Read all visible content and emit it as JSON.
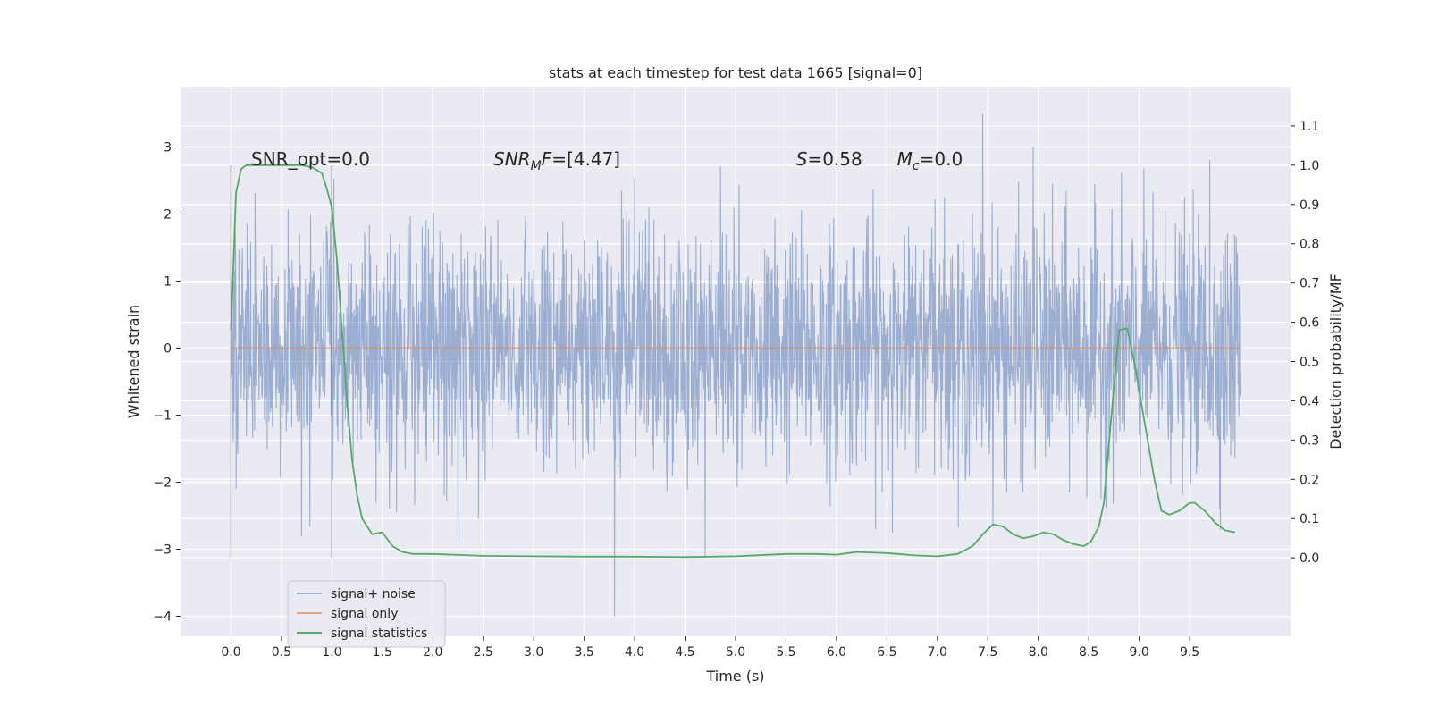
{
  "chart_data": {
    "type": "line",
    "title": "stats at each timestep for test data 1665 [signal=0]",
    "xlabel": "Time (s)",
    "ylabel": "Whitened strain",
    "y2label": "Detection probability/MF",
    "xlim": [
      -0.5,
      10.5
    ],
    "ylim": [
      -4.3,
      3.9
    ],
    "y2lim": [
      -0.2,
      1.2
    ],
    "x_ticks": [
      0.0,
      0.5,
      1.0,
      1.5,
      2.0,
      2.5,
      3.0,
      3.5,
      4.0,
      4.5,
      5.0,
      5.5,
      6.0,
      6.5,
      7.0,
      7.5,
      8.0,
      8.5,
      9.0,
      9.5
    ],
    "x_tick_labels": [
      "0.0",
      "0.5",
      "1.0",
      "1.5",
      "2.0",
      "2.5",
      "3.0",
      "3.5",
      "4.0",
      "4.5",
      "5.0",
      "5.5",
      "6.0",
      "6.5",
      "7.0",
      "7.5",
      "8.0",
      "8.5",
      "9.0",
      "9.5"
    ],
    "y_ticks": [
      3,
      2,
      1,
      0,
      -1,
      -2,
      -3,
      -4
    ],
    "y_tick_labels": [
      "3",
      "2",
      "1",
      "0",
      "−1",
      "−2",
      "−3",
      "−4"
    ],
    "y2_ticks": [
      1.1,
      1.0,
      0.9,
      0.8,
      0.7,
      0.6,
      0.5,
      0.4,
      0.3,
      0.2,
      0.1,
      0.0
    ],
    "y2_tick_labels": [
      "1.1",
      "1.0",
      "0.9",
      "0.8",
      "0.7",
      "0.6",
      "0.5",
      "0.4",
      "0.3",
      "0.2",
      "0.1",
      "0.0"
    ],
    "grid": true,
    "legend_position": "lower-left",
    "annotations": [
      {
        "text": "SNR_opt=0.0",
        "x": 0.2,
        "y": 1.0,
        "axis": "right"
      },
      {
        "html": "<tspan font-style='italic'>SNR</tspan><tspan font-style='italic' font-size='14' dy='5'>M</tspan><tspan font-style='italic' dy='-5'>F</tspan>=[4.47]",
        "text": "SNR_MF=[4.47]",
        "x": 2.6,
        "y": 1.0,
        "axis": "right"
      },
      {
        "text": "S=0.58",
        "x": 5.6,
        "y": 1.0,
        "axis": "right"
      },
      {
        "text": "M_c=0.0",
        "x": 6.6,
        "y": 1.0,
        "axis": "right"
      }
    ],
    "vlines": [
      {
        "x": 0.0,
        "ymin": 0.0,
        "ymax": 1.0
      },
      {
        "x": 1.0,
        "ymin": 0.0,
        "ymax": 1.0
      }
    ],
    "series": [
      {
        "name": "signal+ noise",
        "color": "#4c72b0",
        "opacity": 0.5,
        "axis": "left",
        "style": "noise",
        "x_range": [
          0.0,
          10.0
        ],
        "mean": 0.0,
        "std": 0.9,
        "sample_rate": 256,
        "spikes": [
          {
            "x": 7.45,
            "y": 3.5
          },
          {
            "x": 7.95,
            "y": 3.0
          },
          {
            "x": 3.8,
            "y": -4.0
          },
          {
            "x": 4.85,
            "y": 2.7
          },
          {
            "x": 4.7,
            "y": -3.1
          },
          {
            "x": 0.7,
            "y": -2.8
          },
          {
            "x": 2.25,
            "y": -2.9
          },
          {
            "x": 9.7,
            "y": 2.8
          }
        ]
      },
      {
        "name": "signal only",
        "color": "#dd8452",
        "opacity": 0.7,
        "axis": "left",
        "x": [
          0.0,
          10.0
        ],
        "y": [
          0.0,
          0.0
        ]
      },
      {
        "name": "signal statistics",
        "color": "#55a868",
        "opacity": 1.0,
        "axis": "right",
        "x": [
          0.0,
          0.05,
          0.1,
          0.15,
          0.2,
          0.3,
          0.4,
          0.5,
          0.6,
          0.7,
          0.8,
          0.9,
          0.95,
          1.0,
          1.05,
          1.1,
          1.15,
          1.2,
          1.25,
          1.3,
          1.35,
          1.4,
          1.5,
          1.6,
          1.7,
          1.8,
          1.9,
          2.0,
          2.2,
          2.5,
          3.0,
          3.5,
          4.0,
          4.5,
          5.0,
          5.5,
          5.8,
          6.0,
          6.2,
          6.5,
          6.8,
          7.0,
          7.2,
          7.35,
          7.45,
          7.55,
          7.65,
          7.75,
          7.85,
          7.95,
          8.05,
          8.15,
          8.25,
          8.35,
          8.45,
          8.52,
          8.6,
          8.65,
          8.72,
          8.8,
          8.88,
          8.95,
          9.05,
          9.15,
          9.22,
          9.3,
          9.4,
          9.5,
          9.55,
          9.65,
          9.75,
          9.85,
          9.95
        ],
        "y": [
          0.58,
          0.93,
          0.99,
          1.0,
          1.0,
          1.0,
          1.0,
          1.0,
          1.0,
          1.0,
          0.995,
          0.98,
          0.94,
          0.89,
          0.76,
          0.58,
          0.4,
          0.25,
          0.16,
          0.1,
          0.08,
          0.06,
          0.065,
          0.03,
          0.015,
          0.01,
          0.01,
          0.01,
          0.008,
          0.005,
          0.004,
          0.003,
          0.003,
          0.002,
          0.004,
          0.01,
          0.01,
          0.008,
          0.015,
          0.012,
          0.006,
          0.004,
          0.01,
          0.03,
          0.06,
          0.085,
          0.08,
          0.06,
          0.05,
          0.055,
          0.065,
          0.06,
          0.045,
          0.035,
          0.03,
          0.04,
          0.08,
          0.14,
          0.35,
          0.58,
          0.585,
          0.5,
          0.35,
          0.2,
          0.12,
          0.11,
          0.12,
          0.14,
          0.14,
          0.12,
          0.09,
          0.07,
          0.065
        ]
      }
    ]
  }
}
